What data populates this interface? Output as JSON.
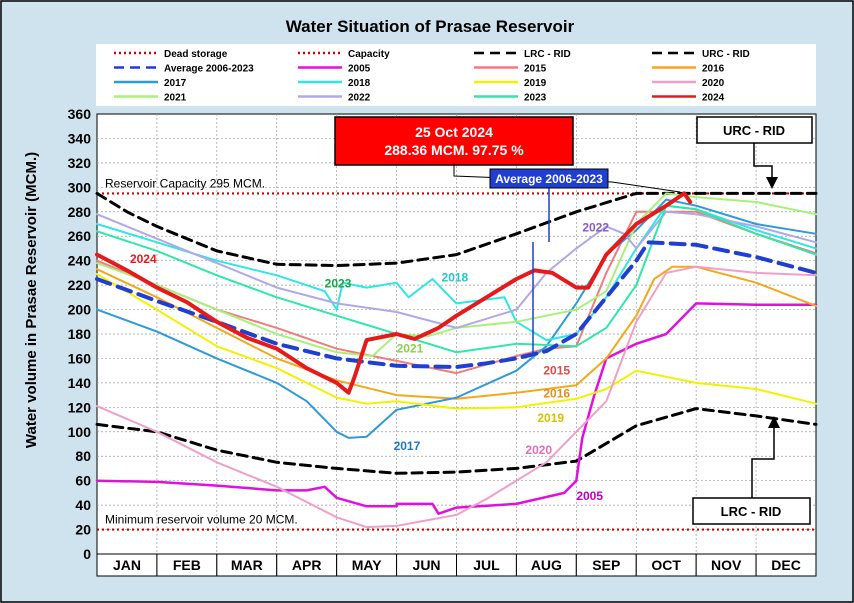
{
  "chart_data": {
    "type": "line",
    "title": "Water Situation of Prasae Reservoir",
    "ylabel": "Water volume in Prasae Reservoir (MCM.)",
    "xlabel": "",
    "ylim": [
      0,
      360
    ],
    "y_ticks": [
      0,
      20,
      40,
      60,
      80,
      100,
      120,
      140,
      160,
      180,
      200,
      220,
      240,
      260,
      280,
      300,
      320,
      340,
      360
    ],
    "months": [
      "JAN",
      "FEB",
      "MAR",
      "APR",
      "MAY",
      "JUN",
      "JUL",
      "AUG",
      "SEP",
      "OCT",
      "NOV",
      "DEC"
    ],
    "x_unit": "month index (0 = start of JAN, 12 = end of DEC)",
    "legend": [
      {
        "name": "Dead storage",
        "color": "#d40000",
        "dash": "dotted"
      },
      {
        "name": "Capacity",
        "color": "#d40000",
        "dash": "dotted"
      },
      {
        "name": "LRC - RID",
        "color": "#000000",
        "dash": "dashed"
      },
      {
        "name": "URC - RID",
        "color": "#000000",
        "dash": "dashed"
      },
      {
        "name": "Average 2006-2023",
        "color": "#1f3fd0",
        "dash": "dashed"
      },
      {
        "name": "2005",
        "color": "#e010e0",
        "dash": "solid"
      },
      {
        "name": "2015",
        "color": "#f07c7c",
        "dash": "solid"
      },
      {
        "name": "2016",
        "color": "#f2a81a",
        "dash": "solid"
      },
      {
        "name": "2017",
        "color": "#2e9ad8",
        "dash": "solid"
      },
      {
        "name": "2018",
        "color": "#2ee6e6",
        "dash": "solid"
      },
      {
        "name": "2019",
        "color": "#f2f200",
        "dash": "solid"
      },
      {
        "name": "2020",
        "color": "#f0a0c8",
        "dash": "solid"
      },
      {
        "name": "2021",
        "color": "#a8f07a",
        "dash": "solid"
      },
      {
        "name": "2022",
        "color": "#b0a8e8",
        "dash": "solid"
      },
      {
        "name": "2023",
        "color": "#2ee8a8",
        "dash": "solid"
      },
      {
        "name": "2024",
        "color": "#e61a1a",
        "dash": "solid"
      }
    ],
    "reference_lines": [
      {
        "name": "Capacity",
        "value": 295,
        "label": "Reservoir Capacity 295 MCM."
      },
      {
        "name": "Dead storage",
        "value": 20,
        "label": "Minimum reservoir volume 20 MCM."
      }
    ],
    "series": [
      {
        "name": "URC - RID",
        "color": "#000000",
        "dash": "dashed",
        "width": 3,
        "points": [
          [
            0,
            295
          ],
          [
            0.5,
            280
          ],
          [
            1,
            268
          ],
          [
            2,
            248
          ],
          [
            3,
            237
          ],
          [
            4,
            236
          ],
          [
            5,
            238
          ],
          [
            6,
            245
          ],
          [
            7,
            262
          ],
          [
            8,
            280
          ],
          [
            9,
            295
          ],
          [
            10,
            295
          ],
          [
            11,
            295
          ],
          [
            12,
            295
          ]
        ]
      },
      {
        "name": "LRC - RID",
        "color": "#000000",
        "dash": "dashed",
        "width": 3,
        "points": [
          [
            0,
            106
          ],
          [
            1,
            100
          ],
          [
            2,
            85
          ],
          [
            3,
            75
          ],
          [
            4,
            70
          ],
          [
            5,
            66
          ],
          [
            6,
            67
          ],
          [
            7,
            70
          ],
          [
            8,
            76
          ],
          [
            9,
            105
          ],
          [
            10,
            119
          ],
          [
            11,
            113
          ],
          [
            12,
            106
          ]
        ]
      },
      {
        "name": "2005",
        "color": "#e010e0",
        "width": 2.5,
        "points": [
          [
            0,
            60
          ],
          [
            1,
            59
          ],
          [
            2,
            56
          ],
          [
            3,
            52
          ],
          [
            3.5,
            52
          ],
          [
            3.8,
            55
          ],
          [
            4,
            46
          ],
          [
            4.5,
            39
          ],
          [
            5,
            39
          ],
          [
            5,
            41
          ],
          [
            5.6,
            41
          ],
          [
            5.7,
            33
          ],
          [
            6,
            38
          ],
          [
            7,
            41
          ],
          [
            7.8,
            50
          ],
          [
            8,
            60
          ],
          [
            8.1,
            95
          ],
          [
            8.3,
            130
          ],
          [
            8.5,
            160
          ],
          [
            9,
            172
          ],
          [
            9.5,
            180
          ],
          [
            10,
            205
          ],
          [
            11,
            204
          ],
          [
            12,
            204
          ]
        ]
      },
      {
        "name": "2015",
        "color": "#f07c7c",
        "width": 2,
        "points": [
          [
            0,
            240
          ],
          [
            1,
            220
          ],
          [
            2,
            200
          ],
          [
            3,
            185
          ],
          [
            4,
            168
          ],
          [
            5,
            158
          ],
          [
            6,
            148
          ],
          [
            7,
            162
          ],
          [
            7.5,
            168
          ],
          [
            8,
            170
          ],
          [
            8.5,
            230
          ],
          [
            9,
            280
          ],
          [
            10,
            280
          ],
          [
            11,
            262
          ],
          [
            12,
            246
          ]
        ]
      },
      {
        "name": "2016",
        "color": "#f2a81a",
        "width": 2,
        "points": [
          [
            0,
            233
          ],
          [
            1,
            210
          ],
          [
            2,
            185
          ],
          [
            3,
            160
          ],
          [
            4,
            142
          ],
          [
            5,
            130
          ],
          [
            6,
            127
          ],
          [
            7,
            132
          ],
          [
            8,
            138
          ],
          [
            8.5,
            160
          ],
          [
            9,
            195
          ],
          [
            9.3,
            225
          ],
          [
            9.6,
            235
          ],
          [
            10,
            235
          ],
          [
            11,
            222
          ],
          [
            12,
            203
          ]
        ]
      },
      {
        "name": "2017",
        "color": "#2e9ad8",
        "width": 2,
        "points": [
          [
            0,
            200
          ],
          [
            1,
            182
          ],
          [
            2,
            160
          ],
          [
            3,
            140
          ],
          [
            3.5,
            125
          ],
          [
            4,
            100
          ],
          [
            4.2,
            95
          ],
          [
            4.5,
            96
          ],
          [
            5,
            118
          ],
          [
            6,
            128
          ],
          [
            7,
            150
          ],
          [
            7.5,
            170
          ],
          [
            8,
            205
          ],
          [
            8.5,
            245
          ],
          [
            9,
            265
          ],
          [
            9.5,
            290
          ],
          [
            10,
            285
          ],
          [
            11,
            270
          ],
          [
            12,
            262
          ]
        ]
      },
      {
        "name": "2018",
        "color": "#2ee6e6",
        "width": 2,
        "points": [
          [
            0,
            270
          ],
          [
            1,
            255
          ],
          [
            2,
            240
          ],
          [
            3,
            228
          ],
          [
            3.8,
            215
          ],
          [
            4,
            200
          ],
          [
            4.1,
            222
          ],
          [
            4.5,
            218
          ],
          [
            5,
            222
          ],
          [
            5.2,
            210
          ],
          [
            5.6,
            225
          ],
          [
            6,
            205
          ],
          [
            6.8,
            210
          ],
          [
            7,
            190
          ],
          [
            7.5,
            175
          ],
          [
            8,
            180
          ],
          [
            8.5,
            210
          ],
          [
            9,
            250
          ],
          [
            9.5,
            285
          ],
          [
            10,
            282
          ],
          [
            11,
            265
          ],
          [
            12,
            250
          ]
        ]
      },
      {
        "name": "2019",
        "color": "#f2f200",
        "width": 2,
        "points": [
          [
            0,
            229
          ],
          [
            1,
            200
          ],
          [
            2,
            170
          ],
          [
            3,
            152
          ],
          [
            4,
            128
          ],
          [
            4.5,
            123
          ],
          [
            5,
            125
          ],
          [
            6,
            119
          ],
          [
            7,
            120
          ],
          [
            8,
            127
          ],
          [
            8.5,
            135
          ],
          [
            9,
            150
          ],
          [
            9.5,
            145
          ],
          [
            10,
            140
          ],
          [
            11,
            135
          ],
          [
            12,
            123
          ]
        ]
      },
      {
        "name": "2020",
        "color": "#f0a0c8",
        "width": 2,
        "points": [
          [
            0,
            121
          ],
          [
            1,
            100
          ],
          [
            2,
            75
          ],
          [
            3,
            55
          ],
          [
            4,
            30
          ],
          [
            4.5,
            22
          ],
          [
            5,
            23
          ],
          [
            6,
            32
          ],
          [
            6.5,
            45
          ],
          [
            7,
            60
          ],
          [
            7.5,
            75
          ],
          [
            8,
            100
          ],
          [
            8.5,
            125
          ],
          [
            9,
            190
          ],
          [
            9.5,
            230
          ],
          [
            10,
            235
          ],
          [
            11,
            230
          ],
          [
            12,
            228
          ]
        ]
      },
      {
        "name": "2021",
        "color": "#a8f07a",
        "width": 2,
        "points": [
          [
            0,
            238
          ],
          [
            1,
            220
          ],
          [
            2,
            200
          ],
          [
            3,
            180
          ],
          [
            4,
            165
          ],
          [
            4.6,
            162
          ],
          [
            5,
            180
          ],
          [
            5.5,
            178
          ],
          [
            6,
            185
          ],
          [
            7,
            190
          ],
          [
            7.5,
            195
          ],
          [
            8,
            200
          ],
          [
            8.5,
            215
          ],
          [
            9,
            270
          ],
          [
            9.5,
            295
          ],
          [
            10,
            292
          ],
          [
            11,
            288
          ],
          [
            12,
            278
          ]
        ]
      },
      {
        "name": "2022",
        "color": "#b0a8e8",
        "width": 2,
        "points": [
          [
            0,
            278
          ],
          [
            1,
            258
          ],
          [
            2,
            238
          ],
          [
            3,
            218
          ],
          [
            4,
            205
          ],
          [
            5,
            198
          ],
          [
            6,
            185
          ],
          [
            7,
            200
          ],
          [
            7.5,
            230
          ],
          [
            8,
            250
          ],
          [
            8.5,
            268
          ],
          [
            8.8,
            262
          ],
          [
            9,
            250
          ],
          [
            9.5,
            280
          ],
          [
            10,
            278
          ],
          [
            11,
            268
          ],
          [
            12,
            255
          ]
        ]
      },
      {
        "name": "2023",
        "color": "#2ee8a8",
        "width": 2,
        "points": [
          [
            0,
            264
          ],
          [
            1,
            248
          ],
          [
            2,
            228
          ],
          [
            3,
            210
          ],
          [
            4,
            195
          ],
          [
            5,
            180
          ],
          [
            6,
            165
          ],
          [
            7,
            172
          ],
          [
            8,
            170
          ],
          [
            8.5,
            185
          ],
          [
            9,
            220
          ],
          [
            9.5,
            285
          ],
          [
            10,
            282
          ],
          [
            11,
            262
          ],
          [
            12,
            245
          ]
        ]
      },
      {
        "name": "Average 2006-2023",
        "color": "#1f3fd0",
        "dash": "longdash",
        "width": 4,
        "points": [
          [
            0,
            225
          ],
          [
            1,
            207
          ],
          [
            2,
            190
          ],
          [
            3,
            172
          ],
          [
            4,
            160
          ],
          [
            5,
            154
          ],
          [
            6,
            153
          ],
          [
            6.5,
            156
          ],
          [
            7,
            160
          ],
          [
            7.5,
            166
          ],
          [
            8,
            180
          ],
          [
            8.5,
            210
          ],
          [
            9,
            240
          ],
          [
            9.2,
            255
          ],
          [
            10,
            253
          ],
          [
            11,
            243
          ],
          [
            12,
            230
          ]
        ]
      },
      {
        "name": "2024",
        "color": "#e61a1a",
        "width": 4,
        "points": [
          [
            0,
            245
          ],
          [
            0.5,
            232
          ],
          [
            1,
            218
          ],
          [
            1.5,
            206
          ],
          [
            2,
            190
          ],
          [
            2.5,
            177
          ],
          [
            3,
            168
          ],
          [
            3.5,
            152
          ],
          [
            4,
            140
          ],
          [
            4.2,
            132
          ],
          [
            4.3,
            145
          ],
          [
            4.5,
            175
          ],
          [
            5,
            180
          ],
          [
            5.3,
            176
          ],
          [
            5.7,
            185
          ],
          [
            6,
            195
          ],
          [
            6.5,
            210
          ],
          [
            7,
            225
          ],
          [
            7.3,
            232
          ],
          [
            7.6,
            230
          ],
          [
            8,
            218
          ],
          [
            8.2,
            218
          ],
          [
            8.5,
            245
          ],
          [
            9,
            270
          ],
          [
            9.5,
            285
          ],
          [
            9.8,
            295
          ],
          [
            9.9,
            288
          ]
        ]
      }
    ],
    "series_labels": [
      {
        "text": "2024",
        "color": "#e61a1a",
        "x": 0.55,
        "y": 238
      },
      {
        "text": "2023",
        "color": "#16a84a",
        "x": 3.8,
        "y": 218
      },
      {
        "text": "2021",
        "color": "#8ad04a",
        "x": 5.0,
        "y": 165
      },
      {
        "text": "2018",
        "color": "#22c6c6",
        "x": 5.75,
        "y": 223
      },
      {
        "text": "2022",
        "color": "#8a5ac8",
        "x": 8.1,
        "y": 264
      },
      {
        "text": "2015",
        "color": "#e04a4a",
        "x": 7.45,
        "y": 147
      },
      {
        "text": "2016",
        "color": "#e0901a",
        "x": 7.45,
        "y": 128
      },
      {
        "text": "2019",
        "color": "#d4c200",
        "x": 7.35,
        "y": 108
      },
      {
        "text": "2020",
        "color": "#e070b0",
        "x": 7.15,
        "y": 82
      },
      {
        "text": "2017",
        "color": "#1a78c4",
        "x": 4.95,
        "y": 85
      },
      {
        "text": "2005",
        "color": "#c000c0",
        "x": 8.0,
        "y": 44
      }
    ],
    "annotations": {
      "latest_date": "25 Oct 2024",
      "latest_value": "288.36 MCM. 97.75 %",
      "average_label": "Average 2006-2023",
      "urc_label": "URC - RID",
      "lrc_label": "LRC - RID"
    }
  }
}
